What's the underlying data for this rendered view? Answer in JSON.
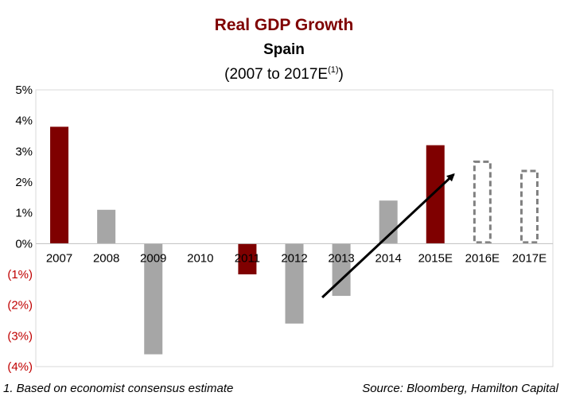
{
  "title": "Real GDP Growth",
  "subtitle": "Spain",
  "subtitle2_main": "(2007 to 2017E",
  "subtitle2_sup": "(1)",
  "subtitle2_close": ")",
  "footnote": "1. Based on economist consensus estimate",
  "source": "Source: Bloomberg, Hamilton Capital",
  "colors": {
    "highlight": "#7f0000",
    "regular": "#a6a6a6",
    "estimate_outline": "#808080",
    "negative_tick": "#c00000",
    "grid": "#d9d9d9"
  },
  "chart_data": {
    "type": "bar",
    "categories": [
      "2007",
      "2008",
      "2009",
      "2010",
      "2011",
      "2012",
      "2013",
      "2014",
      "2015E",
      "2016E",
      "2017E"
    ],
    "values": [
      3.8,
      1.1,
      -3.6,
      0.0,
      -1.0,
      -2.6,
      -1.7,
      1.4,
      3.2,
      2.7,
      2.4
    ],
    "styles": [
      "highlight",
      "regular",
      "regular",
      "regular",
      "highlight",
      "regular",
      "regular",
      "regular",
      "highlight",
      "estimate",
      "estimate"
    ],
    "ylim": [
      -4,
      5
    ],
    "yticks": [
      5,
      4,
      3,
      2,
      1,
      0,
      -1,
      -2,
      -3,
      -4
    ],
    "ytick_labels": [
      "5%",
      "4%",
      "3%",
      "2%",
      "1%",
      "0%",
      "(1%)",
      "(2%)",
      "(3%)",
      "(4%)"
    ],
    "grid": false,
    "annotation": "upward trend arrow from 2013 toward 2016E"
  }
}
